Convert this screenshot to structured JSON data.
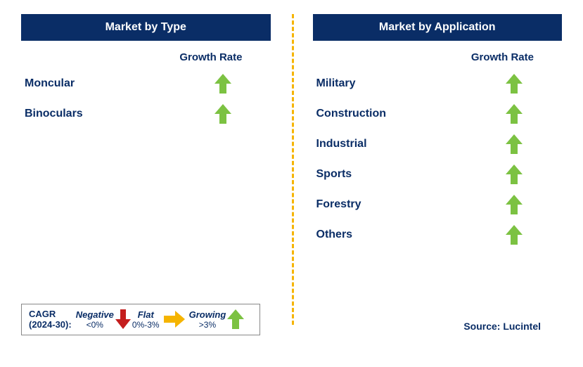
{
  "colors": {
    "navy": "#0a2d66",
    "header_bg": "#0a2d66",
    "growth_green": "#7cc242",
    "flat_yellow": "#f5b400",
    "negative_red": "#c41e1e",
    "divider": "#f5b400",
    "text_dark": "#0a2d66"
  },
  "left": {
    "title": "Market by Type",
    "growth_header": "Growth Rate",
    "rows": [
      {
        "label": "Moncular",
        "arrow": "up-green"
      },
      {
        "label": "Binoculars",
        "arrow": "up-green"
      }
    ]
  },
  "right": {
    "title": "Market by Application",
    "growth_header": "Growth Rate",
    "rows": [
      {
        "label": "Military",
        "arrow": "up-green"
      },
      {
        "label": "Construction",
        "arrow": "up-green"
      },
      {
        "label": "Industrial",
        "arrow": "up-green"
      },
      {
        "label": "Sports",
        "arrow": "up-green"
      },
      {
        "label": "Forestry",
        "arrow": "up-green"
      },
      {
        "label": "Others",
        "arrow": "up-green"
      }
    ]
  },
  "legend": {
    "cagr_line1": "CAGR",
    "cagr_line2": "(2024-30):",
    "items": [
      {
        "label": "Negative",
        "sub": "<0%",
        "arrow": "down-red"
      },
      {
        "label": "Flat",
        "sub": "0%-3%",
        "arrow": "right-yellow"
      },
      {
        "label": "Growing",
        "sub": ">3%",
        "arrow": "up-green"
      }
    ]
  },
  "source": "Source: Lucintel"
}
